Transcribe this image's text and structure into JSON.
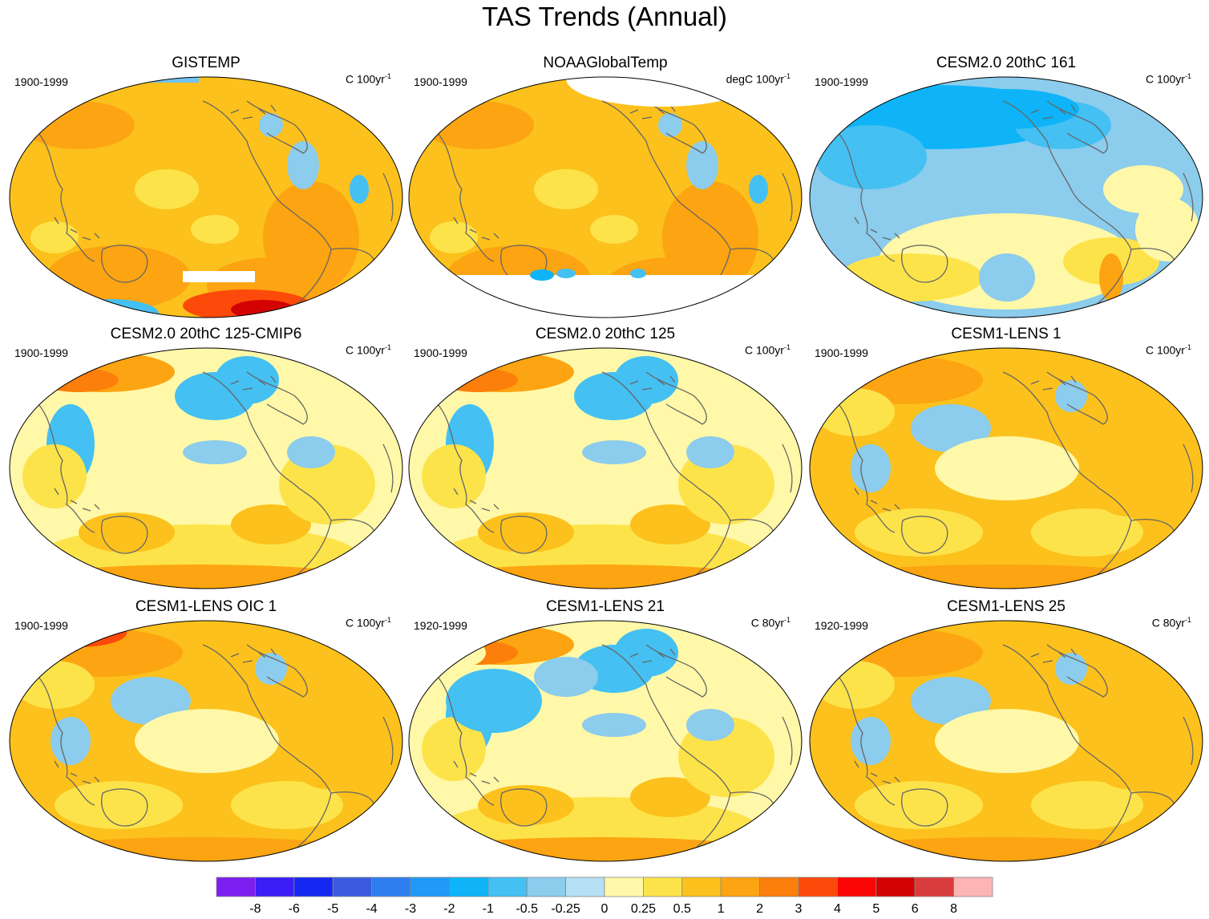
{
  "title": "TAS Trends (Annual)",
  "panels": [
    {
      "title": "GISTEMP",
      "period": "1900-1999",
      "units": "C 100yr",
      "units_sup": "-1",
      "pattern": "obs",
      "missing": "gistemp"
    },
    {
      "title": "NOAAGlobalTemp",
      "period": "1900-1999",
      "units": "degC 100yr",
      "units_sup": "-1",
      "pattern": "obs",
      "missing": "noaa"
    },
    {
      "title": "CESM2.0 20thC 161",
      "period": "1900-1999",
      "units": "C 100yr",
      "units_sup": "-1",
      "pattern": "cool",
      "missing": "none"
    },
    {
      "title": "CESM2.0 20thC 125-CMIP6",
      "period": "1900-1999",
      "units": "C 100yr",
      "units_sup": "-1",
      "pattern": "mixed",
      "missing": "none"
    },
    {
      "title": "CESM2.0 20thC 125",
      "period": "1900-1999",
      "units": "C 100yr",
      "units_sup": "-1",
      "pattern": "mixed",
      "missing": "none"
    },
    {
      "title": "CESM1-LENS 1",
      "period": "1900-1999",
      "units": "C 100yr",
      "units_sup": "-1",
      "pattern": "warm",
      "missing": "none"
    },
    {
      "title": "CESM1-LENS OIC 1",
      "period": "1900-1999",
      "units": "C 100yr",
      "units_sup": "-1",
      "pattern": "warm2",
      "missing": "none"
    },
    {
      "title": "CESM1-LENS 21",
      "period": "1920-1999",
      "units": "C 80yr",
      "units_sup": "-1",
      "pattern": "mixed2",
      "missing": "none"
    },
    {
      "title": "CESM1-LENS 25",
      "period": "1920-1999",
      "units": "C 80yr",
      "units_sup": "-1",
      "pattern": "warm",
      "missing": "none"
    }
  ],
  "colorbar": {
    "colors": [
      "#7d1ff0",
      "#3a1ef5",
      "#1427f0",
      "#3a5be0",
      "#2f7ef0",
      "#1f99fa",
      "#0eb4f7",
      "#44c0f3",
      "#8cccec",
      "#b6e0f4",
      "#fff8a8",
      "#fde34a",
      "#fcc11c",
      "#fca411",
      "#fc7f0c",
      "#fc4a0a",
      "#fc0505",
      "#d40303",
      "#d93c3c",
      "#fcb4b4"
    ],
    "labels": [
      "-8",
      "-6",
      "-5",
      "-4",
      "-3",
      "-2",
      "-1",
      "-0.5",
      "-0.25",
      "0",
      "0.25",
      "0.5",
      "1",
      "2",
      "3",
      "4",
      "5",
      "6",
      "8"
    ]
  }
}
